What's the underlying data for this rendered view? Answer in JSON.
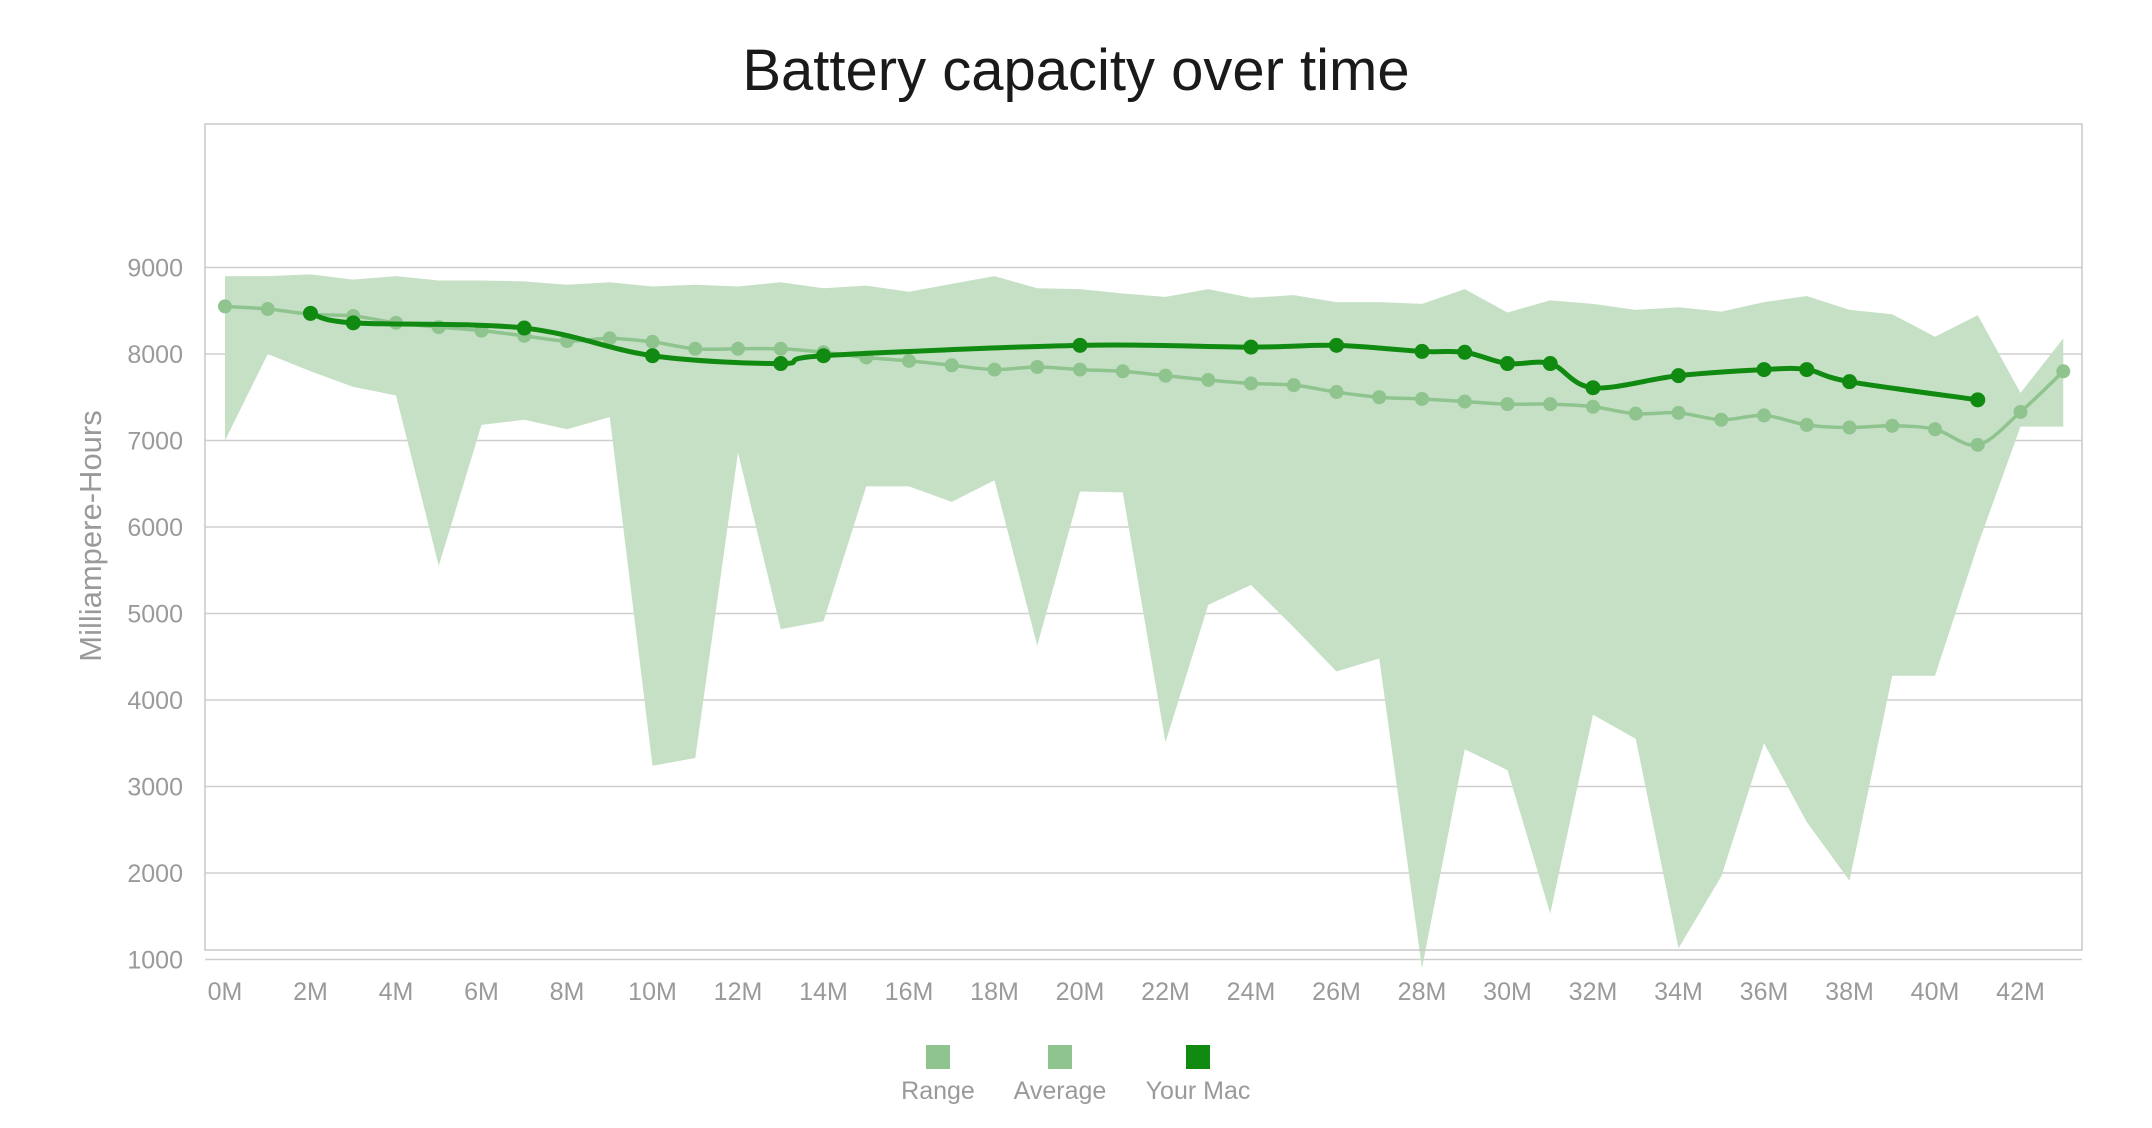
{
  "chart_data": {
    "type": "area",
    "title": "Battery capacity over time",
    "xlabel": "",
    "ylabel": "Milliampere-Hours",
    "x_range": [
      0,
      43
    ],
    "ylim": [
      0,
      9000
    ],
    "y_ticks": [
      1000,
      2000,
      3000,
      4000,
      5000,
      6000,
      7000,
      8000,
      9000
    ],
    "x_ticks": [
      "0M",
      "2M",
      "4M",
      "6M",
      "8M",
      "10M",
      "12M",
      "14M",
      "16M",
      "18M",
      "20M",
      "22M",
      "24M",
      "26M",
      "28M",
      "30M",
      "32M",
      "34M",
      "36M",
      "38M",
      "40M",
      "42M"
    ],
    "x_tick_values": [
      0,
      2,
      4,
      6,
      8,
      10,
      12,
      14,
      16,
      18,
      20,
      22,
      24,
      26,
      28,
      30,
      32,
      34,
      36,
      38,
      40,
      42
    ],
    "grid": true,
    "legend_placement": "bottom-center",
    "series": [
      {
        "name": "Range",
        "kind": "range",
        "color": "#c6e0c6",
        "x": [
          0,
          1,
          2,
          3,
          4,
          5,
          6,
          7,
          8,
          9,
          10,
          11,
          12,
          13,
          14,
          15,
          16,
          17,
          18,
          19,
          20,
          21,
          22,
          23,
          24,
          25,
          26,
          27,
          28,
          29,
          30,
          31,
          32,
          33,
          34,
          35,
          36,
          37,
          38,
          39,
          40,
          41,
          42,
          43
        ],
        "upper": [
          8900,
          8900,
          8920,
          8860,
          8900,
          8850,
          8850,
          8840,
          8800,
          8830,
          8780,
          8800,
          8780,
          8830,
          8760,
          8790,
          8720,
          8810,
          8900,
          8760,
          8750,
          8700,
          8660,
          8750,
          8650,
          8680,
          8600,
          8600,
          8580,
          8750,
          8480,
          8620,
          8580,
          8510,
          8540,
          8490,
          8600,
          8670,
          8510,
          8460,
          8200,
          8450,
          7550,
          8180
        ],
        "lower": [
          7000,
          8000,
          7800,
          7620,
          7520,
          5550,
          7180,
          7240,
          7130,
          7270,
          3240,
          3330,
          6860,
          4820,
          4910,
          6470,
          6470,
          6290,
          6540,
          4630,
          6410,
          6400,
          3510,
          5100,
          5330,
          4840,
          4330,
          4480,
          900,
          3430,
          3190,
          1530,
          3830,
          3550,
          1130,
          1960,
          3500,
          2590,
          1910,
          4280,
          4280,
          5790,
          7160,
          7160
        ]
      },
      {
        "name": "Average",
        "kind": "line",
        "color": "#8fc48f",
        "x": [
          0,
          1,
          2,
          3,
          4,
          5,
          6,
          7,
          8,
          9,
          10,
          11,
          12,
          13,
          14,
          15,
          16,
          17,
          18,
          19,
          20,
          21,
          22,
          23,
          24,
          25,
          26,
          27,
          28,
          29,
          30,
          31,
          32,
          33,
          34,
          35,
          36,
          37,
          38,
          39,
          40,
          41,
          42,
          43
        ],
        "values": [
          8550,
          8520,
          8460,
          8440,
          8360,
          8310,
          8270,
          8210,
          8150,
          8180,
          8140,
          8060,
          8060,
          8060,
          8020,
          7960,
          7920,
          7870,
          7820,
          7850,
          7820,
          7800,
          7750,
          7700,
          7660,
          7640,
          7560,
          7500,
          7480,
          7450,
          7420,
          7420,
          7390,
          7310,
          7320,
          7240,
          7290,
          7180,
          7150,
          7170,
          7130,
          6950,
          7330,
          7800
        ]
      },
      {
        "name": "Your Mac",
        "kind": "line",
        "color": "#118a11",
        "x": [
          2,
          3,
          7,
          10,
          13,
          14,
          20,
          24,
          26,
          28,
          29,
          30,
          31,
          32,
          34,
          36,
          37,
          38,
          41
        ],
        "values": [
          8470,
          8360,
          8300,
          7980,
          7890,
          7980,
          8100,
          8080,
          8100,
          8030,
          8020,
          7890,
          7890,
          7610,
          7750,
          7820,
          7820,
          7680,
          7470
        ]
      }
    ],
    "legend": [
      {
        "label": "Range",
        "color": "#8fc48f"
      },
      {
        "label": "Average",
        "color": "#8fc48f"
      },
      {
        "label": "Your Mac",
        "color": "#118a11"
      }
    ]
  }
}
